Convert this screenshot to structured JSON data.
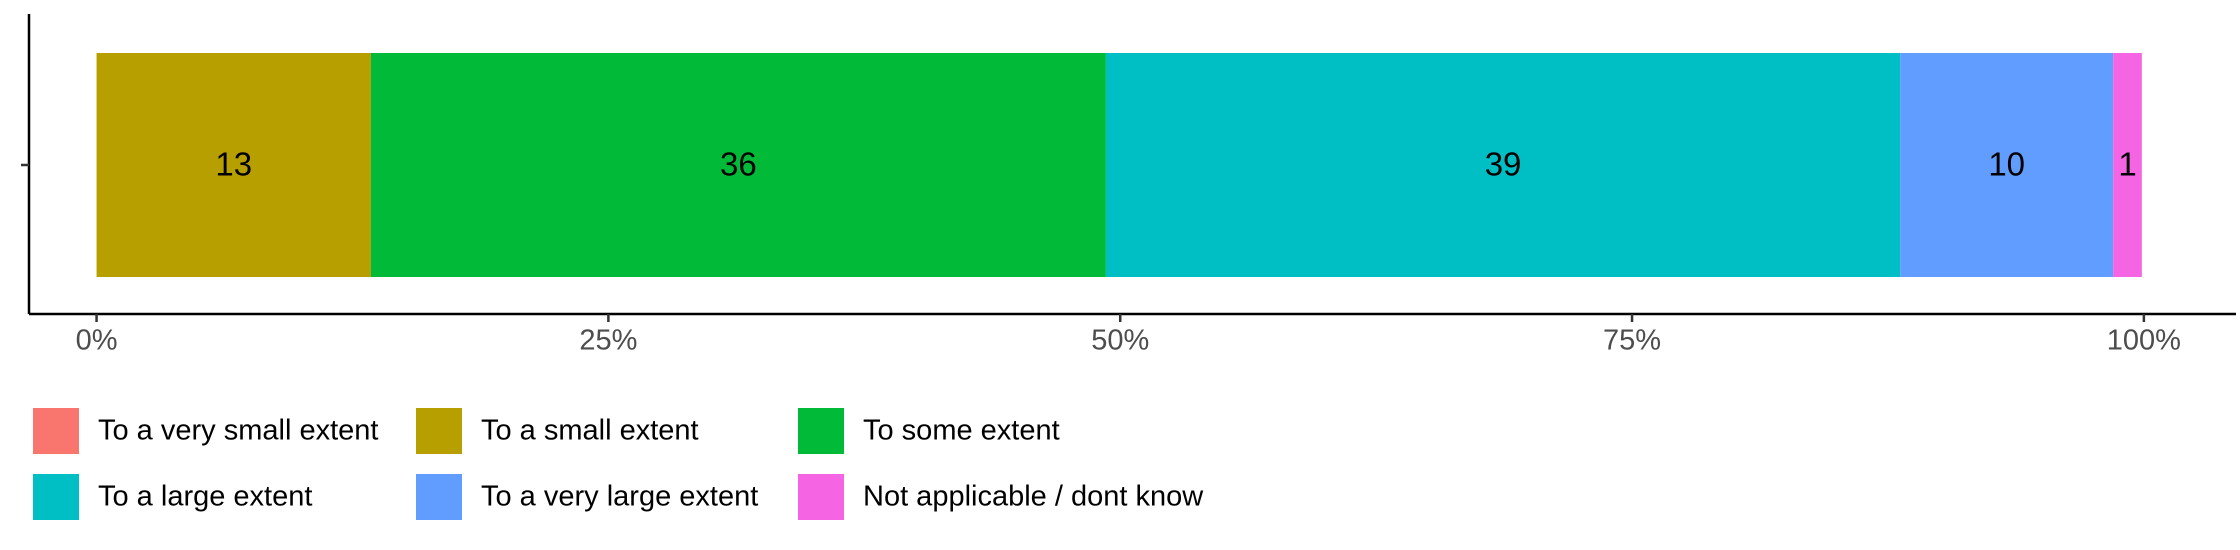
{
  "chart_data": {
    "type": "stacked-bar-horizontal",
    "categories": [
      null
    ],
    "series": [
      {
        "name": "To a very small extent",
        "color": "#F8766D",
        "values": [
          0
        ]
      },
      {
        "name": "To a small extent",
        "color": "#B79F00",
        "values": [
          13.4
        ],
        "value_labels": [
          "13"
        ]
      },
      {
        "name": "To some extent",
        "color": "#00BA38",
        "values": [
          35.9
        ],
        "value_labels": [
          "36"
        ]
      },
      {
        "name": "To a large extent",
        "color": "#00BFC4",
        "values": [
          38.8
        ],
        "value_labels": [
          "39"
        ]
      },
      {
        "name": "To a very large extent",
        "color": "#619CFF",
        "values": [
          10.4
        ],
        "value_labels": [
          "10"
        ]
      },
      {
        "name": "Not applicable / dont know",
        "color": "#F564E3",
        "values": [
          1.4
        ],
        "value_labels": [
          "1"
        ]
      }
    ],
    "xlim": [
      -3.3,
      104.5
    ],
    "xticks": [
      {
        "value": 0,
        "label": "0%"
      },
      {
        "value": 25,
        "label": "25%"
      },
      {
        "value": 50,
        "label": "50%"
      },
      {
        "value": 75,
        "label": "75%"
      },
      {
        "value": 100,
        "label": "100%"
      }
    ],
    "legend": "bottom"
  }
}
